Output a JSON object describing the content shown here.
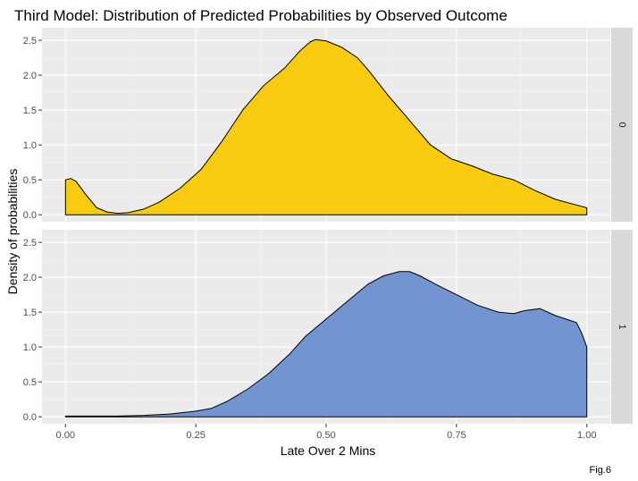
{
  "chart_data": {
    "type": "area",
    "title": "Third Model: Distribution of Predicted Probabilities by Observed Outcome",
    "xlabel": "Late Over 2 Mins",
    "ylabel": "Density of probabilities",
    "caption": "Fig.6",
    "xlim": [
      0,
      1
    ],
    "ylim": [
      0,
      2.5
    ],
    "x_ticks": [
      0,
      0.25,
      0.5,
      0.75,
      1
    ],
    "x_tick_labels": [
      "0.00",
      "0.25",
      "0.50",
      "0.75",
      "1.00"
    ],
    "y_ticks": [
      0,
      0.5,
      1,
      1.5,
      2,
      2.5
    ],
    "y_tick_labels": [
      "0.0",
      "0.5",
      "1.0",
      "1.5",
      "2.0",
      "2.5"
    ],
    "grid": true,
    "facets": [
      {
        "label": "0",
        "fill": "#F8CB10",
        "x": [
          0,
          0.01,
          0.02,
          0.04,
          0.06,
          0.08,
          0.1,
          0.12,
          0.15,
          0.18,
          0.22,
          0.26,
          0.3,
          0.34,
          0.38,
          0.42,
          0.45,
          0.47,
          0.48,
          0.5,
          0.53,
          0.56,
          0.58,
          0.62,
          0.66,
          0.7,
          0.74,
          0.78,
          0.82,
          0.86,
          0.9,
          0.94,
          0.98,
          1.0
        ],
        "y": [
          0.5,
          0.52,
          0.48,
          0.28,
          0.1,
          0.04,
          0.02,
          0.03,
          0.08,
          0.18,
          0.38,
          0.65,
          1.05,
          1.5,
          1.85,
          2.1,
          2.35,
          2.48,
          2.51,
          2.49,
          2.4,
          2.25,
          2.08,
          1.7,
          1.35,
          1.0,
          0.8,
          0.7,
          0.58,
          0.5,
          0.35,
          0.22,
          0.14,
          0.1
        ]
      },
      {
        "label": "1",
        "fill": "#7295D2",
        "x": [
          0,
          0.05,
          0.1,
          0.15,
          0.2,
          0.25,
          0.28,
          0.31,
          0.35,
          0.39,
          0.43,
          0.46,
          0.5,
          0.54,
          0.58,
          0.61,
          0.64,
          0.66,
          0.68,
          0.71,
          0.75,
          0.79,
          0.83,
          0.86,
          0.88,
          0.91,
          0.94,
          0.96,
          0.98,
          0.99,
          1.0
        ],
        "y": [
          0.01,
          0.01,
          0.01,
          0.02,
          0.04,
          0.08,
          0.12,
          0.22,
          0.4,
          0.62,
          0.9,
          1.15,
          1.4,
          1.65,
          1.9,
          2.02,
          2.08,
          2.08,
          2.02,
          1.9,
          1.75,
          1.6,
          1.5,
          1.48,
          1.52,
          1.55,
          1.45,
          1.4,
          1.35,
          1.2,
          1.0
        ]
      }
    ]
  }
}
